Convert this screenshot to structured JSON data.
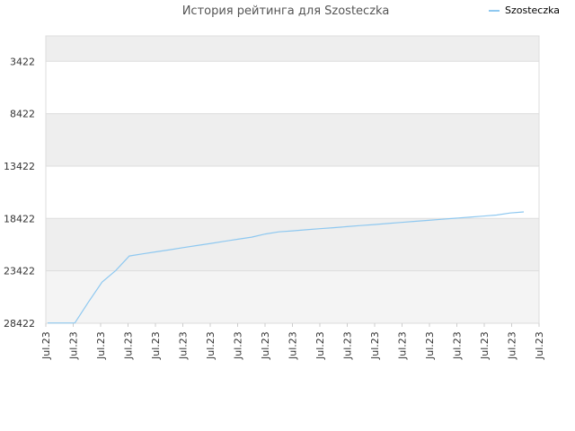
{
  "chart_data": {
    "type": "line",
    "title": "История рейтинга для Szosteczka",
    "xlabel": "",
    "ylabel": "",
    "y_inverted": true,
    "ylim": [
      1000,
      28422
    ],
    "y_ticks": [
      "3422",
      "8422",
      "13422",
      "18422",
      "23422",
      "28422"
    ],
    "y_tick_values": [
      3422,
      8422,
      13422,
      18422,
      23422,
      28422
    ],
    "x_ticks": [
      "Jul.23",
      "Jul.23",
      "Jul.23",
      "Jul.23",
      "Jul.23",
      "Jul.23",
      "Jul.23",
      "Jul.23",
      "Jul.23",
      "Jul.23",
      "Jul.23",
      "Jul.23",
      "Jul.23",
      "Jul.23",
      "Jul.23",
      "Jul.23",
      "Jul.23",
      "Jul.23",
      "Jul.23"
    ],
    "grid": true,
    "legend_position": "top-right",
    "series": [
      {
        "name": "Szosteczka",
        "color": "#8ec8f0",
        "values": [
          28400,
          28400,
          28400,
          26400,
          24500,
          23400,
          22000,
          21800,
          21600,
          21400,
          21200,
          21000,
          20800,
          20600,
          20400,
          20200,
          19900,
          19700,
          19600,
          19500,
          19400,
          19300,
          19200,
          19100,
          19000,
          18900,
          18800,
          18700,
          18600,
          18500,
          18400,
          18300,
          18200,
          18100,
          17900,
          17800
        ]
      }
    ]
  }
}
